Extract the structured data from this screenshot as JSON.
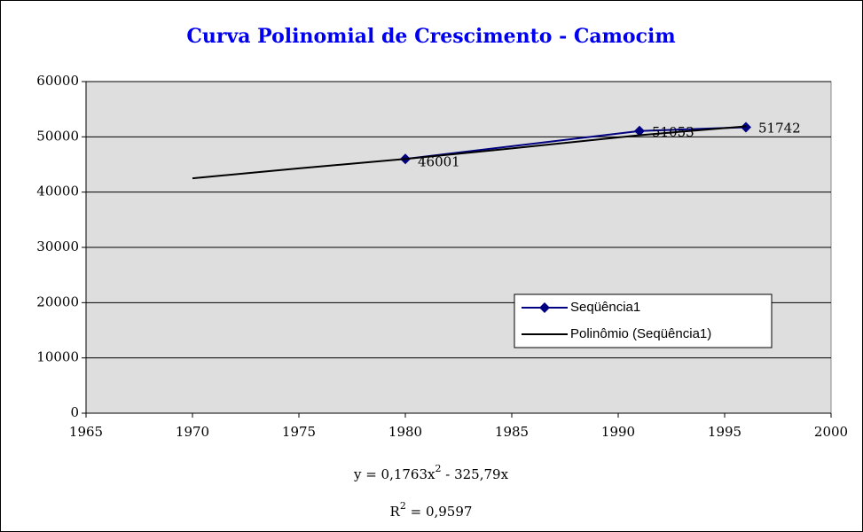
{
  "chart_data": {
    "type": "line",
    "title": "Curva Polinomial de Crescimento - Camocim",
    "series": [
      {
        "name": "Seqüência1",
        "color": "#000080",
        "x": [
          1980,
          1991,
          1996
        ],
        "values": [
          46001,
          51053,
          51742
        ]
      },
      {
        "name": "Polinômio (Seqüência1)",
        "color": "#000000",
        "x": [
          1970,
          1975,
          1980,
          1985,
          1991,
          1996
        ],
        "values": [
          42500,
          44300,
          46000,
          47900,
          50300,
          51900
        ]
      }
    ],
    "xlim": [
      1965,
      2000
    ],
    "xticks": [
      1965,
      1970,
      1975,
      1980,
      1985,
      1990,
      1995,
      2000
    ],
    "ylim": [
      0,
      60000
    ],
    "yticks": [
      0,
      10000,
      20000,
      30000,
      40000,
      50000,
      60000
    ],
    "grid": true,
    "equation": [
      "y = 0,1763x",
      "2",
      " - 325,79x"
    ],
    "r_squared": [
      "R",
      "2",
      " = 0,9597"
    ]
  }
}
